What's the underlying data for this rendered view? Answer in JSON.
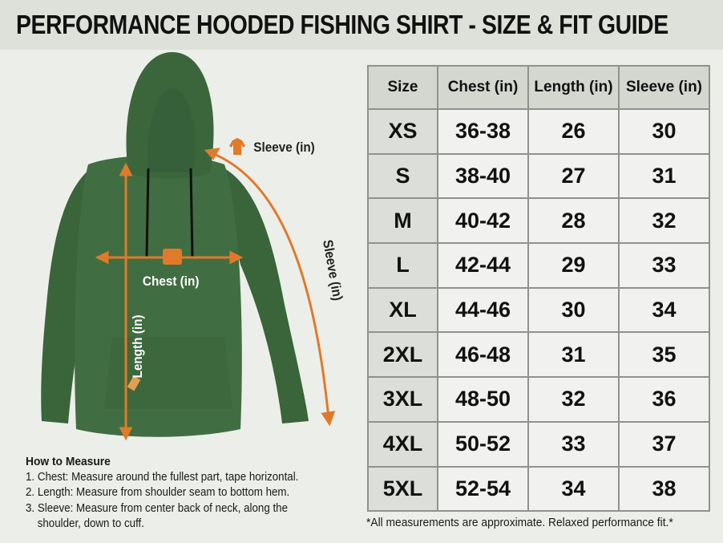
{
  "title": "PERFORMANCE HOODED FISHING SHIRT - SIZE & FIT GUIDE",
  "figure": {
    "sleeve_icon_label": "Sleeve (in)",
    "sleeve_arrow_label": "Sleeve (in)",
    "chest_label": "Chest (in)",
    "length_label": "Length (in)",
    "shirt_color": "#3f6b40",
    "arrow_color": "#e07a2a"
  },
  "how_to": {
    "heading": "How to Measure",
    "steps": [
      "1. Chest: Measure around the fullest part, tape horizontal.",
      "2. Length: Measure from shoulder seam to bottom hem.",
      "3. Sleeve: Measure from center back of neck, along the",
      "shoulder, down to cuff."
    ]
  },
  "table": {
    "headers": [
      "Size",
      "Chest (in)",
      "Length (in)",
      "Sleeve (in)"
    ],
    "rows": [
      [
        "XS",
        "36-38",
        "26",
        "30"
      ],
      [
        "S",
        "38-40",
        "27",
        "31"
      ],
      [
        "M",
        "40-42",
        "28",
        "32"
      ],
      [
        "L",
        "42-44",
        "29",
        "33"
      ],
      [
        "XL",
        "44-46",
        "30",
        "34"
      ],
      [
        "2XL",
        "46-48",
        "31",
        "35"
      ],
      [
        "3XL",
        "48-50",
        "32",
        "36"
      ],
      [
        "4XL",
        "50-52",
        "33",
        "37"
      ],
      [
        "5XL",
        "52-54",
        "34",
        "38"
      ]
    ]
  },
  "footnote": "*All measurements are approximate. Relaxed performance fit.*"
}
